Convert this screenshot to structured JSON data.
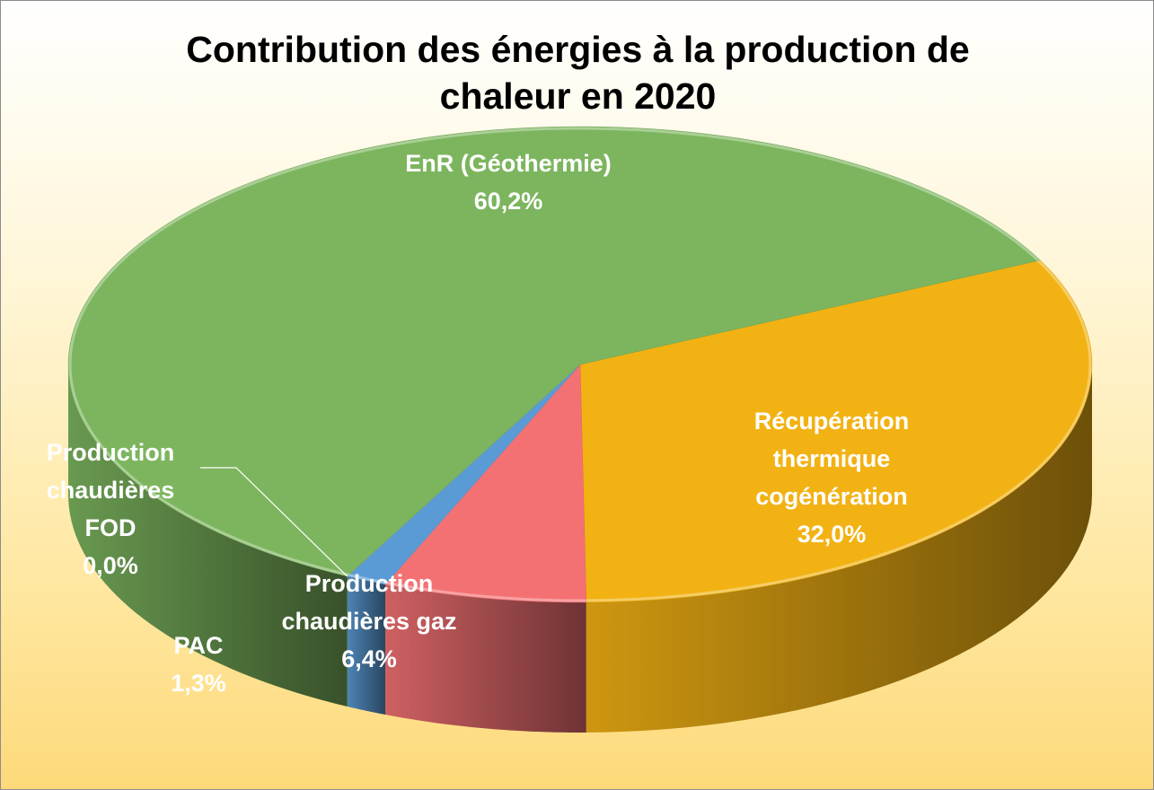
{
  "chart_data": {
    "type": "pie3d",
    "title": "Contribution des énergies à la production de chaleur en 2020",
    "categories": [
      "Récupération thermique cogénération",
      "Production chaudières gaz",
      "PAC",
      "Production chaudières FOD",
      "EnR (Géothermie)"
    ],
    "values": [
      32.0,
      6.4,
      1.3,
      0.0,
      60.2
    ],
    "value_labels": [
      "32,0%",
      "6,4%",
      "1,3%",
      "0,0%",
      "60,2%"
    ],
    "colors": [
      "#f2b213",
      "#f47173",
      "#5b9bd5",
      "#a5a5a5",
      "#7cb55e"
    ]
  }
}
